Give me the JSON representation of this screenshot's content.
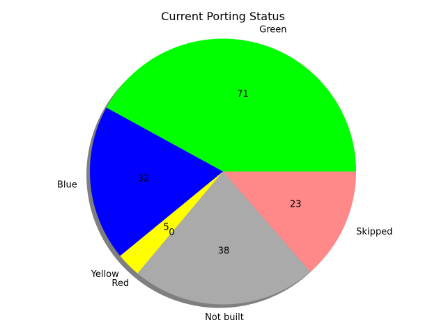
{
  "chart_data": {
    "type": "pie",
    "title": "Current Porting Status",
    "categories": [
      "Green",
      "Blue",
      "Yellow",
      "Red",
      "Not built",
      "Skipped"
    ],
    "values": [
      71,
      32,
      5,
      0,
      38,
      23
    ],
    "colors": [
      "#00ff00",
      "#0000ff",
      "#ffff00",
      "#ff0000",
      "#aaaaaa",
      "#ff8888"
    ],
    "shadow": true,
    "start_angle_deg": 0,
    "direction": "counterclockwise",
    "legend": "none"
  }
}
